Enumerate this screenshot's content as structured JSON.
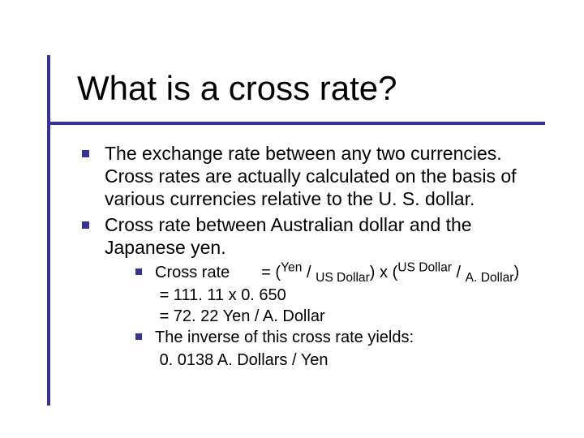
{
  "colors": {
    "accent": "#333399",
    "background": "#ffffff",
    "text": "#000000"
  },
  "typography": {
    "family": "Arial",
    "title_size_pt": 32,
    "body_size_pt": 18,
    "sub_size_pt": 15
  },
  "title": "What is a cross rate?",
  "bullets": [
    "The exchange rate between any two currencies. Cross rates are actually calculated on the basis of various currencies relative to the U. S. dollar.",
    "Cross rate between Australian dollar and the Japanese yen."
  ],
  "formula": {
    "label": "Cross rate",
    "eq_pre": "= (",
    "num1": "Yen",
    "slash": " / ",
    "den1": "US Dollar",
    "mid": ") x (",
    "num2": "US Dollar",
    "den2": "A. Dollar",
    "post": ")"
  },
  "calc": {
    "line1": "= 111. 11 x 0. 650",
    "line2": "= 72. 22 Yen / A. Dollar"
  },
  "inverse": {
    "label": "The inverse of this cross rate yields:",
    "value": "0. 0138 A. Dollars / Yen"
  }
}
